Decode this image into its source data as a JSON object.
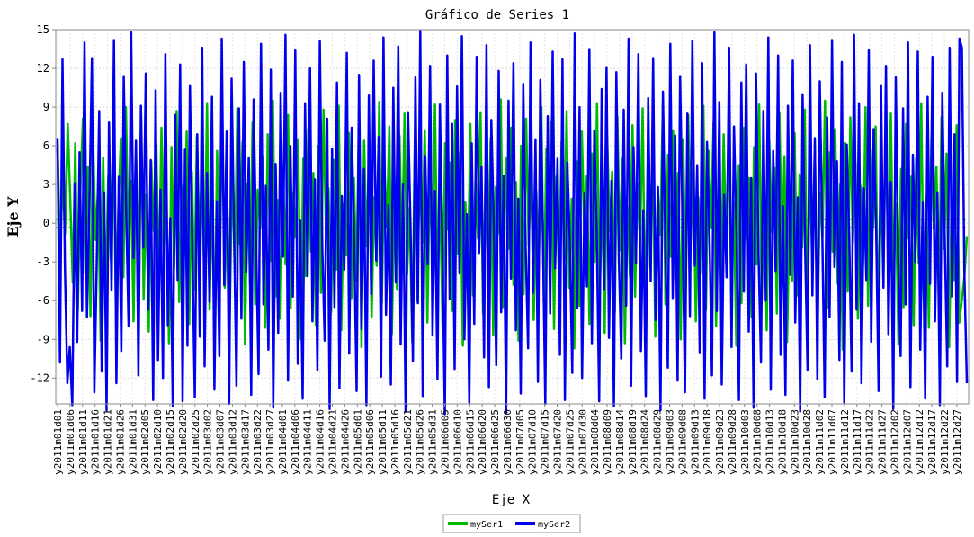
{
  "chart_data": {
    "type": "line",
    "title": "Gráfico de Series 1",
    "xlabel": "Eje X",
    "ylabel": "Eje Y",
    "ylim": [
      -14,
      15
    ],
    "y_ticks": [
      15,
      12,
      9,
      6,
      3,
      0,
      -3,
      -6,
      -9,
      -12
    ],
    "grid": true,
    "legend_position": "bottom-center",
    "mean_lines": true,
    "x_start": "2011-01-01",
    "x_end": "2011-12-31",
    "x_ticks": [
      "y2011m01d01",
      "y2011m01d06",
      "y2011m01d11",
      "y2011m01d16",
      "y2011m01d21",
      "y2011m01d26",
      "y2011m01d31",
      "y2011m02d05",
      "y2011m02d10",
      "y2011m02d15",
      "y2011m02d20",
      "y2011m02d25",
      "y2011m03d02",
      "y2011m03d07",
      "y2011m03d12",
      "y2011m03d17",
      "y2011m03d22",
      "y2011m03d27",
      "y2011m04d01",
      "y2011m04d06",
      "y2011m04d11",
      "y2011m04d16",
      "y2011m04d21",
      "y2011m04d26",
      "y2011m05d01",
      "y2011m05d06",
      "y2011m05d11",
      "y2011m05d16",
      "y2011m05d21",
      "y2011m05d26",
      "y2011m05d31",
      "y2011m06d05",
      "y2011m06d10",
      "y2011m06d15",
      "y2011m06d20",
      "y2011m06d25",
      "y2011m06d30",
      "y2011m07d05",
      "y2011m07d10",
      "y2011m07d15",
      "y2011m07d20",
      "y2011m07d25",
      "y2011m07d30",
      "y2011m08d04",
      "y2011m08d09",
      "y2011m08d14",
      "y2011m08d19",
      "y2011m08d24",
      "y2011m08d29",
      "y2011m09d03",
      "y2011m09d08",
      "y2011m09d13",
      "y2011m09d18",
      "y2011m09d23",
      "y2011m09d28",
      "y2011m10d03",
      "y2011m10d08",
      "y2011m10d13",
      "y2011m10d18",
      "y2011m10d23",
      "y2011m10d28",
      "y2011m11d02",
      "y2011m11d07",
      "y2011m11d12",
      "y2011m11d17",
      "y2011m11d22",
      "y2011m11d27",
      "y2011m12d02",
      "y2011m12d07",
      "y2011m12d12",
      "y2011m12d17",
      "y2011m12d22",
      "y2011m12d27"
    ],
    "series": [
      {
        "name": "mySer1",
        "color": "#00bb00",
        "values": [
          5.8,
          -2.1,
          3.4,
          -0.8,
          7.7,
          1.9,
          -4.6,
          6.2,
          -6.8,
          2.5,
          8.1,
          -3.9,
          4.4,
          -7.2,
          6.9,
          -1.3,
          2.8,
          -9.1,
          5.1,
          -5.5,
          3.7,
          -2.8,
          7.9,
          -6.4,
          1.1,
          6.6,
          -4.2,
          9.0,
          -1.9,
          3.3,
          -7.6,
          5.4,
          -3.0,
          8.3,
          -5.9,
          2.2,
          -8.4,
          4.8,
          -0.6,
          6.1,
          -4.9,
          7.4,
          -2.6,
          1.7,
          -9.3,
          5.9,
          -3.5,
          8.7,
          -6.1,
          2.9,
          -1.4,
          7.1,
          -7.8,
          4.0,
          -5.2,
          6.7,
          -0.9,
          3.6,
          -4.4,
          9.3,
          -6.7,
          2.1,
          -8.9,
          5.6,
          -2.3,
          7.6,
          -5.0,
          1.4,
          -7.1,
          4.6,
          -3.8,
          8.9,
          -1.6,
          6.3,
          -9.4,
          3.1,
          -4.7,
          7.8,
          -6.3,
          2.6,
          -0.4,
          5.2,
          -8.1,
          6.9,
          -2.9,
          9.5,
          -5.7,
          1.8,
          -7.4,
          4.3,
          -3.2,
          8.4,
          -6.6,
          2.4,
          -1.1,
          6.5,
          -9.0,
          5.0,
          -4.1,
          7.3,
          -2.2,
          3.9,
          -7.9,
          6.0,
          -5.4,
          8.8,
          -0.7,
          2.7,
          -6.9,
          4.9,
          -3.6,
          9.1,
          -8.3,
          1.5,
          -2.5,
          7.0,
          -5.8,
          3.5,
          -4.5,
          8.2,
          -9.6,
          6.4,
          -1.8,
          5.3,
          -7.3,
          2.0,
          -3.3,
          9.4,
          -6.2,
          4.5,
          -0.3,
          7.5,
          -8.6,
          3.0,
          -5.1,
          6.8,
          -2.7,
          8.5,
          -4.0,
          1.2,
          -9.2,
          5.7,
          -6.0,
          4.1,
          -1.5,
          7.2,
          -7.7,
          3.8,
          -3.1,
          9.2,
          -5.3,
          2.3,
          -8.0,
          6.2,
          -0.5,
          4.7,
          -6.8,
          8.0,
          -2.4,
          5.5,
          -9.5,
          1.6,
          -4.3,
          7.7,
          -5.6,
          3.4,
          -1.2,
          8.6,
          -7.0,
          4.2,
          -3.7,
          6.6,
          -8.7,
          2.8,
          -0.8,
          9.6,
          -6.5,
          5.1,
          -2.0,
          7.4,
          -4.8,
          3.2,
          -9.1,
          6.0,
          -5.5,
          8.1,
          -1.7,
          4.4,
          -7.5,
          2.5,
          -3.4,
          9.0,
          -6.1,
          5.8,
          -0.2,
          7.9,
          -8.2,
          3.6,
          -4.6,
          6.3,
          -2.8,
          8.7,
          -5.0,
          1.9,
          -9.7,
          4.8,
          -6.4,
          7.1,
          -1.0,
          3.7,
          -7.8,
          5.4,
          -3.0,
          9.3,
          -5.9,
          2.2,
          -8.5,
          6.7,
          -0.6,
          4.0,
          -6.9,
          8.3,
          -2.1,
          5.0,
          -9.3,
          1.3,
          -4.2,
          7.6,
          -5.7,
          3.1,
          -1.6,
          8.9,
          -7.2,
          4.6,
          -3.5,
          6.1,
          -8.8,
          2.7,
          -0.9,
          9.4,
          -6.3,
          5.3,
          -2.6,
          7.2,
          -4.4,
          3.9,
          -9.0,
          6.5,
          -5.2,
          8.4,
          -1.4,
          4.1,
          -7.6,
          2.0,
          -3.9,
          9.1,
          -6.7,
          5.6,
          -0.4,
          7.8,
          -8.0,
          3.3,
          -4.9,
          6.9,
          -2.3,
          8.0,
          -5.4,
          1.7,
          -9.5,
          4.5,
          -6.2,
          7.4,
          -1.3,
          3.5,
          -7.3,
          5.9,
          -3.2,
          9.2,
          -6.0,
          2.6,
          -8.3,
          6.4,
          -0.7,
          4.3,
          -7.0,
          8.6,
          -2.5,
          5.2,
          -9.2,
          1.0,
          -4.5,
          7.0,
          -5.6,
          3.8,
          -1.9,
          8.8,
          -7.7,
          4.9,
          -3.6,
          6.0,
          -8.6,
          2.4,
          -1.1,
          9.5,
          -6.6,
          5.5,
          -2.2,
          7.3,
          -4.7,
          3.0,
          -9.8,
          6.2,
          -5.3,
          8.2,
          -1.5,
          4.7,
          -7.4,
          2.9,
          -3.3,
          9.0,
          -6.4,
          5.7,
          -0.3,
          7.5,
          -8.4,
          3.4,
          -4.1,
          6.8,
          -2.7,
          8.5,
          -5.1,
          1.5,
          -9.4,
          4.2,
          -6.5,
          7.7,
          -1.2,
          3.6,
          -7.9,
          5.0,
          -3.1,
          9.3,
          -5.8,
          2.1,
          -8.1,
          6.6,
          -0.5,
          4.4,
          -6.7,
          8.2,
          -2.0,
          5.4,
          -9.6,
          1.8,
          -4.4,
          7.6,
          -7.7,
          -6.0,
          -4.2,
          -1.0
        ]
      },
      {
        "name": "mySer2",
        "color": "#0000ee",
        "values": [
          6.6,
          -10.8,
          12.7,
          -3.4,
          -12.4,
          -9.6,
          -14.1,
          3.1,
          -9.2,
          5.5,
          -6.8,
          14.0,
          -7.3,
          1.2,
          12.8,
          -13.1,
          -3.0,
          8.7,
          -11.5,
          2.4,
          -14.5,
          7.8,
          -5.2,
          14.2,
          -12.4,
          3.6,
          -9.9,
          11.4,
          0.8,
          -8.0,
          14.8,
          -2.7,
          6.4,
          -11.8,
          9.1,
          -1.9,
          11.6,
          -6.7,
          4.9,
          -13.7,
          10.3,
          -10.6,
          2.6,
          -12.0,
          13.1,
          -7.9,
          0.4,
          -14.2,
          8.4,
          -4.4,
          12.3,
          -13.8,
          5.7,
          -9.5,
          10.7,
          -2.2,
          -13.5,
          6.9,
          -8.8,
          13.6,
          -11.1,
          3.9,
          -6.1,
          9.8,
          -12.9,
          1.7,
          -10.3,
          14.3,
          -4.8,
          7.1,
          -14.0,
          11.2,
          -0.6,
          -12.6,
          8.9,
          -7.4,
          12.5,
          -3.8,
          5.1,
          -13.3,
          9.6,
          -1.3,
          -11.7,
          13.9,
          -6.3,
          2.9,
          -9.8,
          11.9,
          -14.3,
          4.6,
          -8.5,
          10.1,
          -2.6,
          14.6,
          -12.2,
          6.0,
          -5.7,
          13.4,
          -10.9,
          0.2,
          -13.6,
          9.3,
          -4.1,
          12.0,
          -7.6,
          3.4,
          -11.4,
          14.1,
          -1.8,
          -9.1,
          8.1,
          -14.4,
          5.8,
          -6.5,
          10.9,
          -12.8,
          2.1,
          -3.6,
          13.2,
          -10.1,
          7.4,
          -0.9,
          -13.0,
          11.5,
          -8.2,
          4.2,
          -14.1,
          9.9,
          -5.5,
          12.6,
          -2.9,
          6.7,
          -11.9,
          14.4,
          -7.1,
          1.4,
          -12.5,
          10.5,
          -4.6,
          13.7,
          -9.4,
          3.0,
          -14.6,
          8.6,
          -0.1,
          -10.7,
          11.3,
          -6.2,
          14.9,
          -13.4,
          5.2,
          -3.2,
          12.2,
          -8.7,
          2.5,
          -12.1,
          9.2,
          -1.5,
          -14.8,
          13.0,
          -5.9,
          7.7,
          -11.3,
          10.6,
          -3.9,
          14.5,
          -9.0,
          0.7,
          -13.9,
          6.2,
          -7.8,
          12.9,
          -2.3,
          4.4,
          -10.4,
          13.8,
          -12.7,
          8.0,
          -0.4,
          -11.0,
          11.8,
          -6.9,
          3.7,
          -14.7,
          9.5,
          -4.3,
          12.4,
          -8.3,
          1.9,
          -13.2,
          10.8,
          -2.0,
          -9.7,
          14.0,
          -5.4,
          6.5,
          -12.3,
          11.1,
          -0.8,
          -14.0,
          8.3,
          -7.0,
          13.3,
          -3.5,
          5.0,
          -10.2,
          12.7,
          -13.7,
          4.7,
          -1.2,
          -11.6,
          14.7,
          -6.6,
          9.0,
          -12.0,
          2.3,
          -4.9,
          13.5,
          -9.3,
          7.2,
          -0.7,
          -13.8,
          10.4,
          -5.1,
          12.1,
          -8.9,
          3.3,
          -14.2,
          11.7,
          -2.5,
          -10.5,
          8.8,
          -6.4,
          14.3,
          -12.6,
          5.9,
          -3.1,
          13.1,
          -9.9,
          1.0,
          -13.4,
          9.7,
          -4.5,
          12.8,
          -7.5,
          2.8,
          -14.5,
          10.2,
          -1.7,
          -11.2,
          13.9,
          -5.8,
          6.8,
          -12.2,
          11.4,
          -0.2,
          -13.1,
          8.5,
          -7.2,
          14.1,
          -3.3,
          4.5,
          -10.0,
          12.4,
          -13.6,
          6.3,
          -1.1,
          -11.8,
          14.8,
          -6.8,
          9.4,
          -12.5,
          2.2,
          -4.2,
          13.6,
          -9.6,
          7.5,
          -0.5,
          -13.7,
          10.9,
          -5.3,
          12.3,
          -8.4,
          3.5,
          -14.3,
          11.6,
          -2.4,
          -10.8,
          8.7,
          -6.0,
          14.4,
          -12.9,
          5.6,
          -3.7,
          13.0,
          -10.2,
          1.3,
          -13.3,
          9.1,
          -4.0,
          12.6,
          -7.7,
          2.0,
          -14.6,
          10.0,
          -1.6,
          -11.4,
          13.8,
          -5.6,
          6.6,
          -12.1,
          11.0,
          -0.3,
          -13.5,
          8.2,
          -7.3,
          14.2,
          -3.4,
          4.8,
          -10.6,
          12.5,
          -13.9,
          6.1,
          -1.0,
          -11.5,
          14.6,
          -6.7,
          9.3,
          -12.4,
          2.7,
          -4.4,
          13.4,
          -9.2,
          7.3,
          -0.6,
          -13.0,
          10.7,
          -5.0,
          12.2,
          -8.6,
          3.2,
          -14.4,
          11.3,
          -2.8,
          -10.3,
          8.9,
          -6.3,
          14.0,
          -12.7,
          5.3,
          -3.0,
          13.3,
          -9.8,
          1.6,
          -13.6,
          9.8,
          -4.7,
          12.9,
          -7.6,
          2.4,
          -14.1,
          10.1,
          -1.4,
          -11.1,
          13.6,
          -5.7,
          6.9,
          -12.3,
          14.3,
          13.6,
          -4.0,
          -12.4
        ]
      }
    ]
  }
}
